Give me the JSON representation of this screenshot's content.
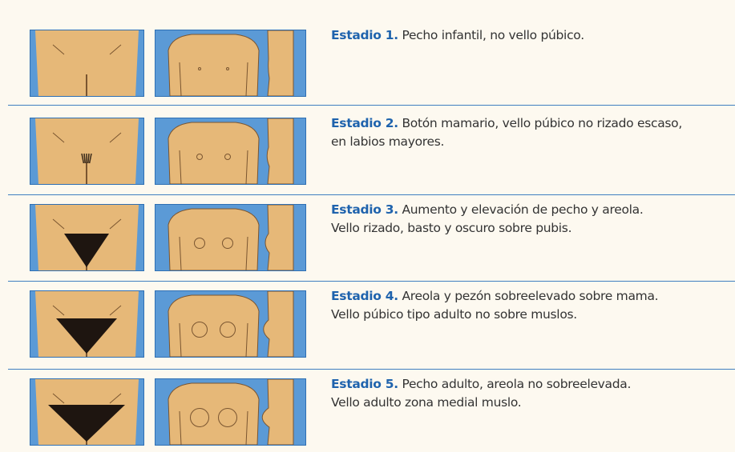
{
  "stages": [
    {
      "label": "Estadio 1.",
      "lines": [
        "Pecho infantil, no vello púbico."
      ]
    },
    {
      "label": "Estadio 2.",
      "lines": [
        "Botón mamario, vello púbico no rizado escaso,",
        "en labios mayores."
      ]
    },
    {
      "label": "Estadio 3.",
      "lines": [
        "Aumento y elevación de pecho y areola.",
        "Vello rizado, basto y oscuro sobre pubis."
      ]
    },
    {
      "label": "Estadio 4.",
      "lines": [
        "Areola y pezón sobreelevado sobre mama.",
        "Vello púbico tipo adulto no sobre muslos."
      ]
    },
    {
      "label": "Estadio 5.",
      "lines": [
        "Pecho adulto, areola no sobreelevada.",
        "Vello adulto zona medial muslo."
      ]
    }
  ]
}
